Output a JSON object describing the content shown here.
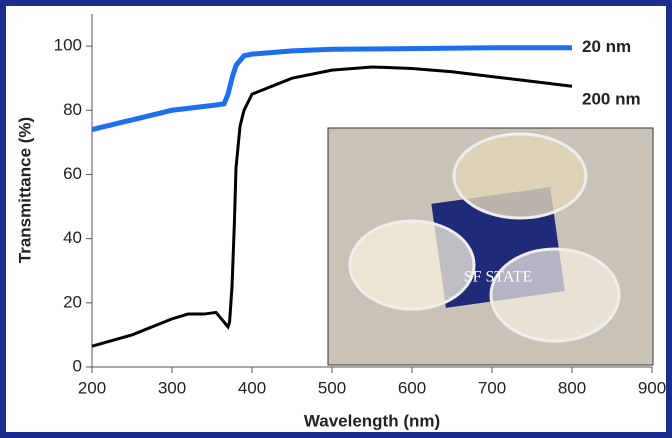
{
  "chart_data": {
    "type": "line",
    "xlabel": "Wavelength (nm)",
    "ylabel": "Transmittance (%)",
    "xlim": [
      200,
      900
    ],
    "xticks": [
      200,
      300,
      400,
      500,
      600,
      700,
      800,
      900
    ],
    "ylim": [
      0,
      110
    ],
    "yticks": [
      0,
      20,
      40,
      60,
      80,
      100
    ],
    "series": [
      {
        "name": "20 nm",
        "color": "#1e6ef0",
        "x": [
          200,
          250,
          300,
          350,
          365,
          370,
          375,
          380,
          390,
          400,
          450,
          500,
          600,
          700,
          800
        ],
        "values": [
          74,
          77,
          80,
          81.5,
          82,
          85,
          90,
          94,
          97,
          97.5,
          98.5,
          99,
          99.2,
          99.5,
          99.5
        ]
      },
      {
        "name": "200 nm",
        "color": "#000000",
        "x": [
          200,
          250,
          300,
          320,
          340,
          355,
          365,
          370,
          372,
          375,
          378,
          380,
          385,
          390,
          400,
          450,
          500,
          550,
          600,
          650,
          700,
          750,
          800
        ],
        "values": [
          6.5,
          10,
          15,
          16.5,
          16.5,
          17,
          14,
          12.5,
          14,
          25,
          45,
          62,
          75,
          80,
          85,
          90,
          92.5,
          93.5,
          93,
          92,
          90.5,
          89,
          87.5
        ]
      }
    ],
    "inset_text": "SF STATE"
  }
}
